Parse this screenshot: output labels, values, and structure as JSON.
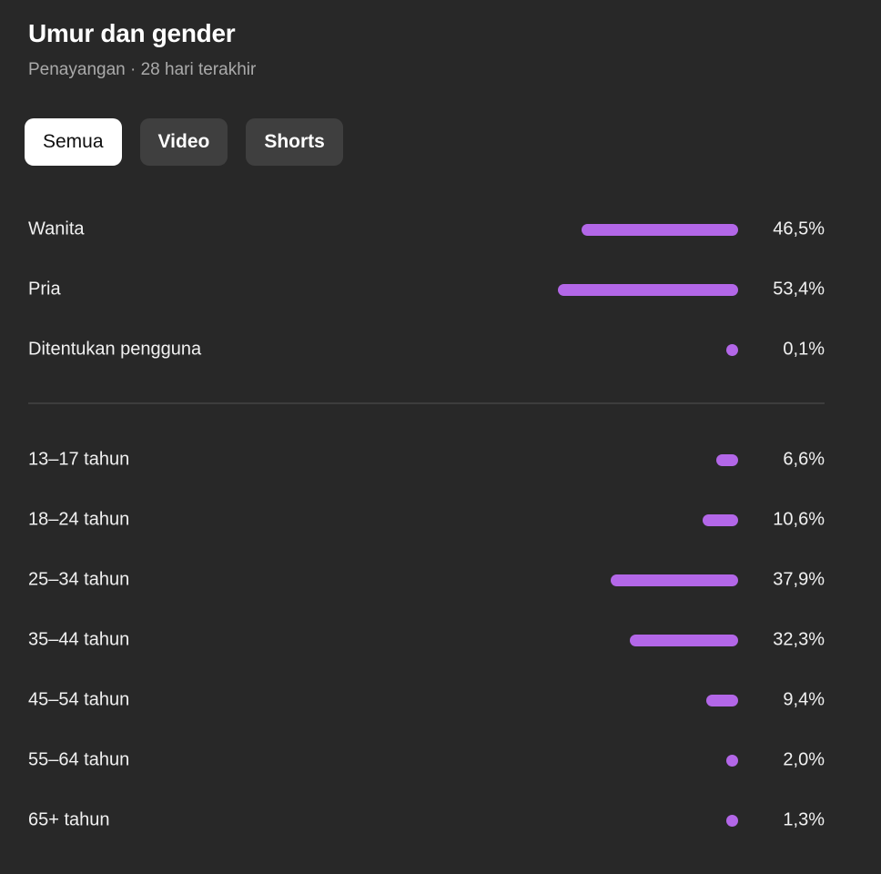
{
  "header": {
    "title": "Umur dan gender",
    "subtitle": "Penayangan · 28 hari terakhir"
  },
  "tabs": [
    {
      "label": "Semua",
      "active": true
    },
    {
      "label": "Video",
      "active": false
    },
    {
      "label": "Shorts",
      "active": false
    }
  ],
  "colors": {
    "bar": "#b367e8",
    "background": "#282828"
  },
  "gender": [
    {
      "label": "Wanita",
      "value_text": "46,5%",
      "value": 46.5
    },
    {
      "label": "Pria",
      "value_text": "53,4%",
      "value": 53.4
    },
    {
      "label": "Ditentukan pengguna",
      "value_text": "0,1%",
      "value": 0.1
    }
  ],
  "age": [
    {
      "label": "13–17 tahun",
      "value_text": "6,6%",
      "value": 6.6
    },
    {
      "label": "18–24 tahun",
      "value_text": "10,6%",
      "value": 10.6
    },
    {
      "label": "25–34 tahun",
      "value_text": "37,9%",
      "value": 37.9
    },
    {
      "label": "35–44 tahun",
      "value_text": "32,3%",
      "value": 32.3
    },
    {
      "label": "45–54 tahun",
      "value_text": "9,4%",
      "value": 9.4
    },
    {
      "label": "55–64 tahun",
      "value_text": "2,0%",
      "value": 2.0
    },
    {
      "label": "65+ tahun",
      "value_text": "1,3%",
      "value": 1.3
    }
  ]
}
